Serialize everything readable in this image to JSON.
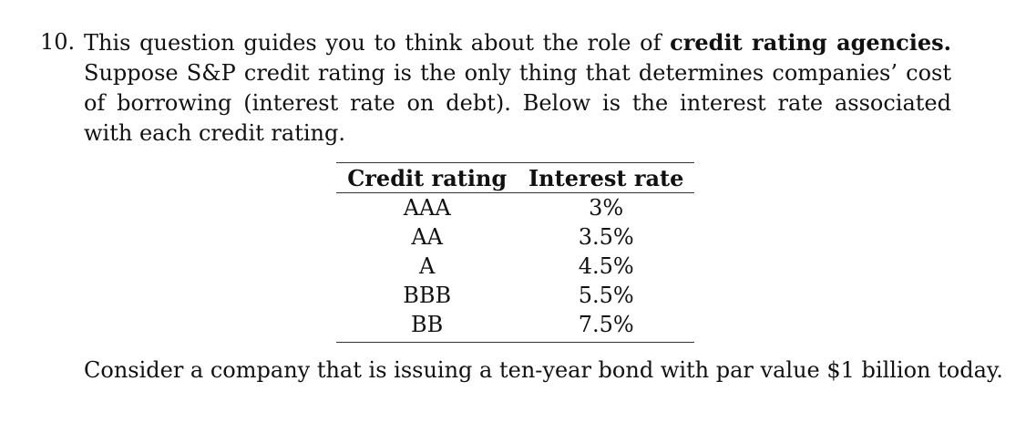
{
  "question": {
    "number": "10.",
    "intro": "This question guides you to think about the role of ",
    "emphasis": "credit rating agencies.",
    "body": " Suppose S&P credit rating is the only thing that determines companies’ cost of borrowing (interest rate on debt). Below is the interest rate associated with each credit rating."
  },
  "table": {
    "headers": [
      "Credit rating",
      "Interest rate"
    ],
    "rows": [
      {
        "rating": "AAA",
        "rate": "3%"
      },
      {
        "rating": "AA",
        "rate": "3.5%"
      },
      {
        "rating": "A",
        "rate": "4.5%"
      },
      {
        "rating": "BBB",
        "rate": "5.5%"
      },
      {
        "rating": "BB",
        "rate": "7.5%"
      }
    ]
  },
  "followup": "Consider a company that is issuing a ten-year bond with par value $1 billion today."
}
